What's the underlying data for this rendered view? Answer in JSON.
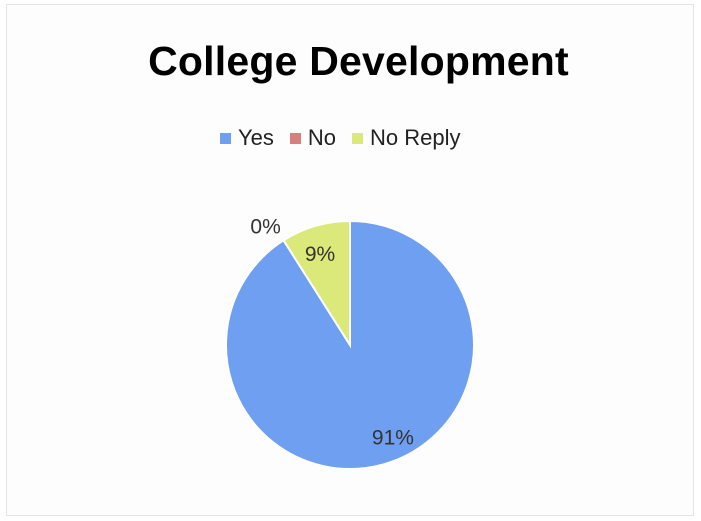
{
  "chart_data": {
    "type": "pie",
    "title": "College Development",
    "categories": [
      "Yes",
      "No",
      "No Reply"
    ],
    "values": [
      91,
      0,
      9
    ],
    "data_labels": [
      "91%",
      "0%",
      "9%"
    ],
    "colors": [
      "#6f9ff0",
      "#d97f7f",
      "#dbe87a"
    ],
    "legend_position": "top",
    "start_angle_deg": 0,
    "direction": "clockwise"
  }
}
